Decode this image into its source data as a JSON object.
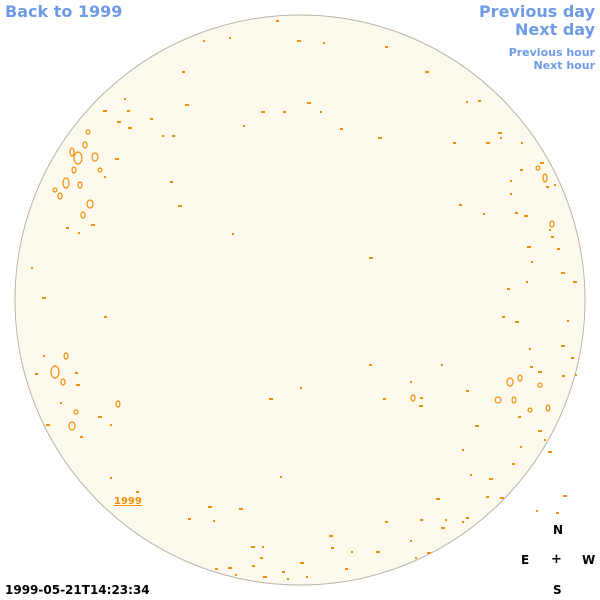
{
  "nav": {
    "back_label": "Back to 1999",
    "previous_day_label": "Previous day",
    "next_day_label": "Next day",
    "previous_hour_label": "Previous hour",
    "next_hour_label": "Next hour"
  },
  "disk": {
    "year_link": "1999",
    "fill_color": "#fdf9ec",
    "edge_color": "#b8b4a8",
    "feature_color": "#f0900c"
  },
  "compass": {
    "north": "N",
    "east": "E",
    "center": "+",
    "west": "W",
    "south": "S"
  },
  "timestamp": "1999-05-21T14:23:34"
}
